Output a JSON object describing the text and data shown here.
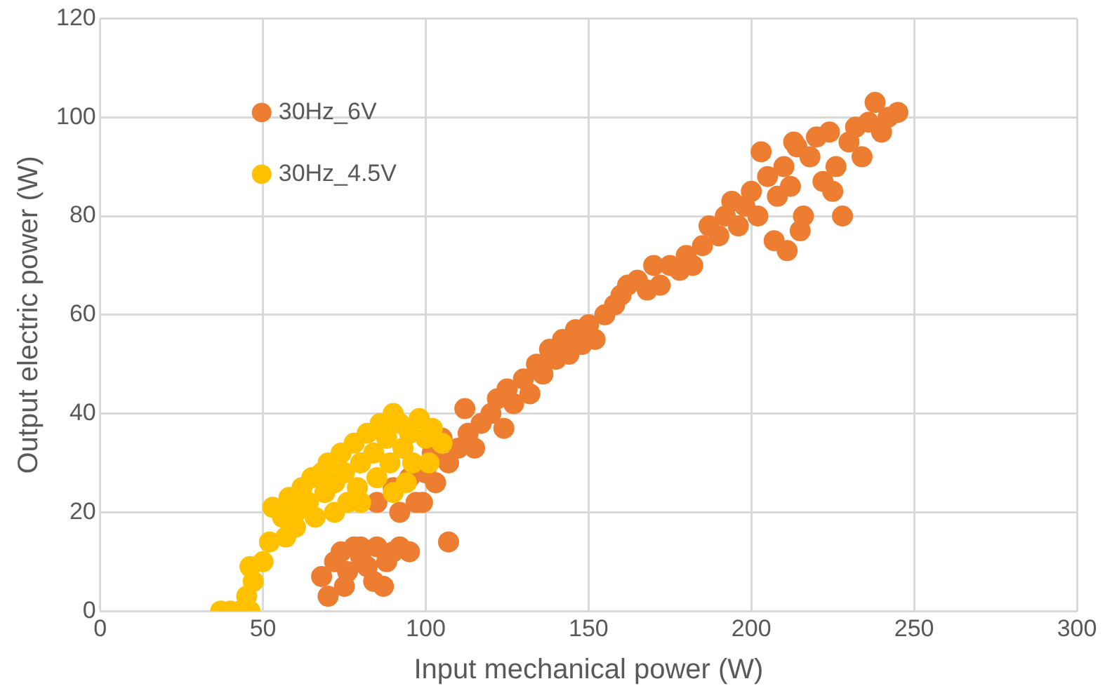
{
  "chart_data": {
    "type": "scatter",
    "xlabel": "Input mechanical power (W)",
    "ylabel": "Output electric power (W)",
    "xlim": [
      0,
      300
    ],
    "xticks": [
      0,
      50,
      100,
      150,
      200,
      250,
      300
    ],
    "ylim": [
      0,
      120
    ],
    "yticks": [
      0,
      20,
      40,
      60,
      80,
      100,
      120
    ],
    "grid": true,
    "legend": "top left",
    "marker": "circle",
    "series": [
      {
        "name": "30Hz_6V",
        "color": "#ed7d31",
        "x": [
          68,
          70,
          72,
          74,
          76,
          78,
          80,
          82,
          84,
          85,
          87,
          88,
          90,
          92,
          95,
          107,
          80,
          75,
          85,
          90,
          92,
          95,
          97,
          99,
          100,
          102,
          103,
          105,
          107,
          110,
          112,
          113,
          115,
          117,
          120,
          122,
          124,
          125,
          127,
          130,
          132,
          134,
          136,
          138,
          140,
          142,
          144,
          146,
          148,
          150,
          152,
          155,
          158,
          160,
          162,
          165,
          168,
          170,
          172,
          175,
          178,
          180,
          182,
          185,
          187,
          190,
          192,
          194,
          196,
          198,
          200,
          202,
          203,
          205,
          207,
          208,
          210,
          211,
          212,
          214,
          216,
          218,
          220,
          222,
          224,
          226,
          228,
          230,
          232,
          234,
          236,
          238,
          240,
          242,
          245,
          225,
          215,
          213
        ],
        "values": [
          7,
          3,
          10,
          12,
          8,
          13,
          11,
          9,
          6,
          13,
          5,
          10,
          12,
          13,
          12,
          14,
          13,
          5,
          22,
          25,
          20,
          27,
          22,
          22,
          28,
          32,
          26,
          35,
          30,
          33,
          41,
          36,
          33,
          38,
          40,
          43,
          37,
          45,
          42,
          47,
          44,
          50,
          48,
          53,
          51,
          55,
          52,
          57,
          54,
          58,
          55,
          60,
          62,
          64,
          66,
          67,
          65,
          70,
          66,
          70,
          69,
          72,
          70,
          74,
          78,
          76,
          80,
          83,
          78,
          82,
          85,
          80,
          93,
          88,
          75,
          84,
          90,
          73,
          86,
          94,
          80,
          92,
          96,
          87,
          97,
          90,
          80,
          95,
          98,
          92,
          99,
          103,
          97,
          100,
          101,
          85,
          77,
          95
        ]
      },
      {
        "name": "30Hz_4.5V",
        "color": "#ffc000",
        "x": [
          37,
          40,
          43,
          46,
          45,
          47,
          46,
          50,
          52,
          53,
          56,
          58,
          57,
          60,
          62,
          60,
          64,
          65,
          66,
          68,
          70,
          69,
          72,
          74,
          75,
          76,
          78,
          80,
          79,
          82,
          84,
          85,
          86,
          88,
          90,
          89,
          92,
          93,
          95,
          96,
          98,
          100,
          102,
          105,
          101,
          90,
          94,
          80,
          72
        ],
        "values": [
          0,
          0,
          0,
          0,
          3,
          6,
          9,
          10,
          14,
          21,
          19,
          23,
          15,
          20,
          25,
          17,
          22,
          27,
          19,
          28,
          30,
          24,
          26,
          32,
          28,
          22,
          34,
          30,
          25,
          36,
          32,
          27,
          38,
          35,
          40,
          30,
          38,
          33,
          36,
          30,
          39,
          35,
          37,
          34,
          30,
          24,
          26,
          22,
          20
        ]
      }
    ]
  }
}
